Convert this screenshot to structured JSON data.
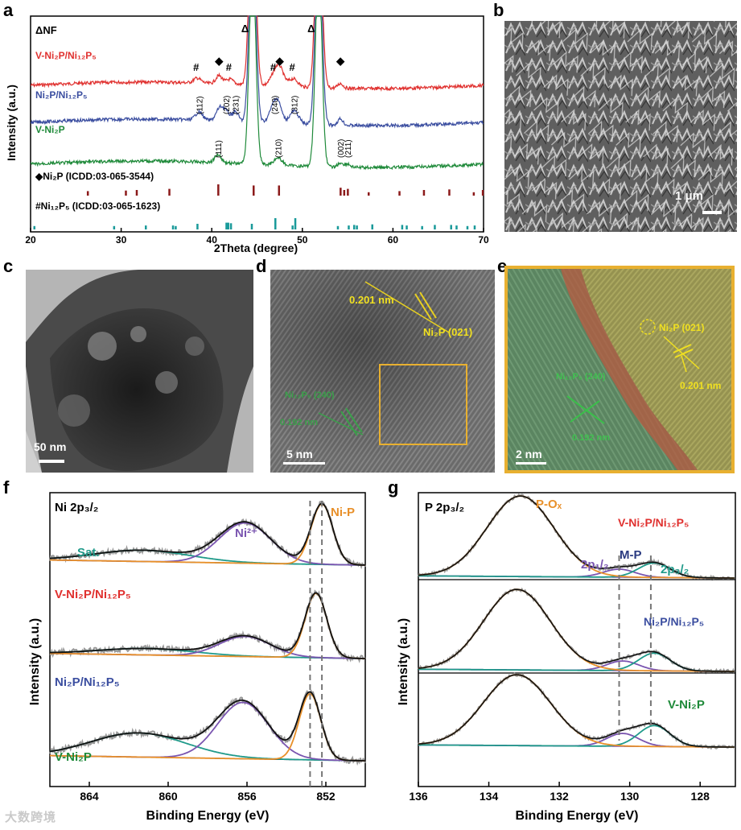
{
  "panel_labels": {
    "a": "a",
    "b": "b",
    "c": "c",
    "d": "d",
    "e": "e",
    "f": "f",
    "g": "g"
  },
  "watermark": "大数跨境",
  "colors": {
    "red": "#e0312f",
    "blue": "#3b4ea0",
    "green": "#1f8a3a",
    "ni2p_bar": "#8b1a1a",
    "ni12p5_bar": "#1a9a9a",
    "orange": "#e8902a",
    "purple": "#7a55b0",
    "teal": "#1f9a8a",
    "black": "#111111",
    "gray": "#8a8a8a"
  },
  "panel_b": {
    "scale": "1 μm"
  },
  "panel_c": {
    "scale": "50 nm"
  },
  "panel_d": {
    "scale": "5 nm",
    "ni2p_d": "0.201 nm",
    "ni2p_plane": "Ni₂P (021)",
    "ni12p5_plane": "Ni₁₂P₅ (240)",
    "ni12p5_d": "0.192 nm"
  },
  "panel_e": {
    "scale": "2 nm",
    "ni2p_plane": "Ni₂P (021)",
    "ni2p_d": "0.201 nm",
    "ni12p5_plane": "Ni₁₂P₅ (240)",
    "ni12p5_d": "0.192 nm"
  },
  "chart_data": [
    {
      "panel": "a",
      "type": "line",
      "xlabel": "2Theta (degree)",
      "ylabel": "Intensity (a.u.)",
      "xlim": [
        20,
        70
      ],
      "xticks": [
        20,
        30,
        40,
        50,
        60,
        70
      ],
      "header": "ΔNF",
      "substrate_peaks": {
        "marker": "Δ",
        "positions": [
          44.5,
          51.8
        ]
      },
      "series": [
        {
          "name": "V-Ni₂P/Ni₁₂P₅",
          "color": "#e0312f",
          "markers": [
            {
              "x": 38.4,
              "m": "#"
            },
            {
              "x": 40.8,
              "m": "◆"
            },
            {
              "x": 42.0,
              "m": "#"
            },
            {
              "x": 46.9,
              "m": "#"
            },
            {
              "x": 47.5,
              "m": "◆"
            },
            {
              "x": 49.0,
              "m": "#"
            },
            {
              "x": 54.2,
              "m": "◆"
            }
          ]
        },
        {
          "name": "Ni₂P/Ni₁₂P₅",
          "color": "#3b4ea0",
          "hkl": [
            {
              "x": 38.6,
              "t": "(112)"
            },
            {
              "x": 41.6,
              "t": "(202)"
            },
            {
              "x": 42.6,
              "t": "(231)"
            },
            {
              "x": 46.9,
              "t": "(240)"
            },
            {
              "x": 49.1,
              "t": "(312)"
            }
          ]
        },
        {
          "name": "V-Ni₂P",
          "color": "#1f8a3a",
          "hkl": [
            {
              "x": 40.7,
              "t": "(111)"
            },
            {
              "x": 47.3,
              "t": "(210)"
            },
            {
              "x": 54.2,
              "t": "(002)"
            },
            {
              "x": 55.0,
              "t": "(211)"
            }
          ]
        }
      ],
      "references": [
        {
          "name": "◆Ni₂P (ICDD:03-065-3544)",
          "color": "#8b1a1a",
          "lines": [
            [
              26.3,
              0.4
            ],
            [
              30.5,
              0.45
            ],
            [
              31.7,
              0.5
            ],
            [
              35.3,
              0.6
            ],
            [
              40.7,
              1.0
            ],
            [
              44.6,
              0.9
            ],
            [
              47.4,
              0.9
            ],
            [
              54.2,
              0.7
            ],
            [
              54.6,
              0.5
            ],
            [
              55.0,
              0.6
            ],
            [
              57.3,
              0.3
            ],
            [
              60.7,
              0.4
            ],
            [
              63.4,
              0.5
            ],
            [
              66.2,
              0.55
            ],
            [
              68.9,
              0.3
            ],
            [
              69.9,
              0.5
            ]
          ]
        },
        {
          "name": "#Ni₁₂P₅ (ICDD:03-065-1623)",
          "color": "#1a9a9a",
          "lines": [
            [
              20.4,
              0.3
            ],
            [
              29.2,
              0.3
            ],
            [
              32.7,
              0.35
            ],
            [
              35.7,
              0.35
            ],
            [
              36.0,
              0.3
            ],
            [
              38.4,
              0.5
            ],
            [
              41.6,
              0.6
            ],
            [
              41.8,
              0.6
            ],
            [
              42.1,
              0.55
            ],
            [
              44.4,
              0.5
            ],
            [
              47.0,
              1.0
            ],
            [
              48.9,
              0.35
            ],
            [
              49.2,
              1.0
            ],
            [
              53.9,
              0.3
            ],
            [
              55.1,
              0.35
            ],
            [
              55.7,
              0.4
            ],
            [
              56.0,
              0.35
            ],
            [
              57.7,
              0.45
            ],
            [
              61.0,
              0.4
            ],
            [
              61.5,
              0.35
            ],
            [
              63.2,
              0.3
            ],
            [
              64.6,
              0.4
            ],
            [
              66.4,
              0.4
            ],
            [
              67.0,
              0.35
            ],
            [
              68.2,
              0.3
            ],
            [
              69.0,
              0.35
            ]
          ]
        }
      ]
    },
    {
      "panel": "f",
      "type": "line",
      "xlabel": "Binding Energy (eV)",
      "ylabel": "Intensity (a.u.)",
      "xlim": [
        866,
        850
      ],
      "xticks": [
        864,
        860,
        856,
        852
      ],
      "title": "Ni 2p₃/₂",
      "peak_labels": {
        "satellite": "Sat.",
        "ni2": "Ni²⁺",
        "nip": "Ni-P"
      },
      "reference_lines_eV": [
        852.8,
        852.2
      ],
      "series": [
        {
          "name": "V-Ni₂P/Ni₁₂P₅",
          "color": "#e0312f",
          "ni_p": 852.2,
          "ni2": 856.1,
          "sat": 861.3
        },
        {
          "name": "Ni₂P/Ni₁₂P₅",
          "color": "#3b4ea0",
          "ni_p": 852.5,
          "ni2": 856.1,
          "sat": 861.1
        },
        {
          "name": "V-Ni₂P",
          "color": "#1f8a3a",
          "ni_p": 852.8,
          "ni2": 856.2,
          "sat": 861.5
        }
      ]
    },
    {
      "panel": "g",
      "type": "line",
      "xlabel": "Binding Energy (eV)",
      "ylabel": "Intensity (a.u.)",
      "xlim": [
        136,
        127
      ],
      "xticks": [
        136,
        134,
        132,
        130,
        128
      ],
      "title": "P 2p₃/₂",
      "peak_labels": {
        "pox": "P-Oₓ",
        "p12": "2p₁/₂",
        "mp": "M-P",
        "p32": "2p₃/₂"
      },
      "reference_lines_eV": [
        130.3,
        129.4
      ],
      "series": [
        {
          "name": "V-Ni₂P/Ni₁₂P₅",
          "color": "#e0312f",
          "pox": 133.1,
          "p12": 130.3,
          "p32": 129.3
        },
        {
          "name": "Ni₂P/Ni₁₂P₅",
          "color": "#3b4ea0",
          "pox": 133.2,
          "p12": 130.2,
          "p32": 129.3
        },
        {
          "name": "V-Ni₂P",
          "color": "#1f8a3a",
          "pox": 133.2,
          "p12": 130.2,
          "p32": 129.3
        }
      ]
    }
  ]
}
